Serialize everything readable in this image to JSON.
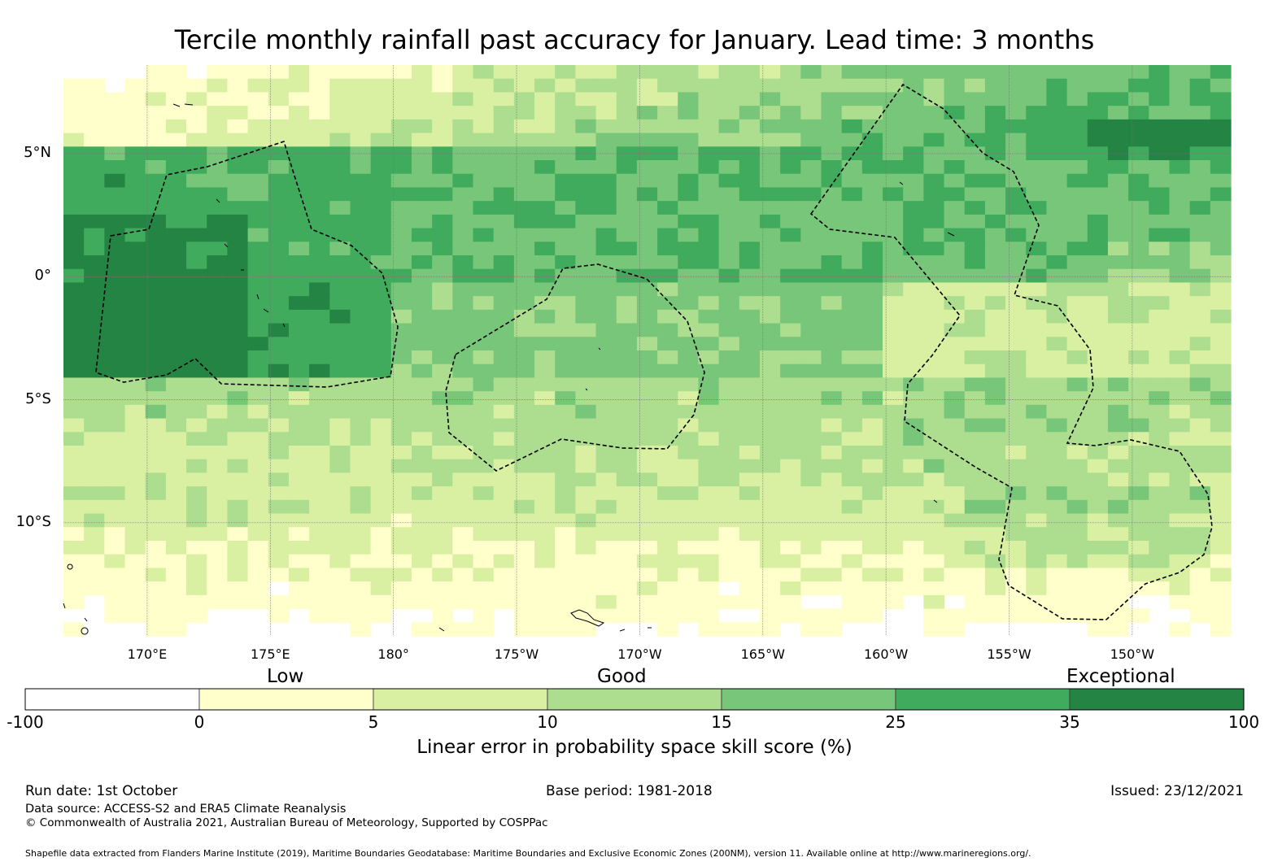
{
  "title": "Tercile monthly rainfall past accuracy for January. Lead time: 3 months",
  "map": {
    "lat_labels": [
      "5°N",
      "0°",
      "5°S",
      "10°S"
    ],
    "lon_labels": [
      "170°E",
      "175°E",
      "180°",
      "175°W",
      "170°W",
      "165°W",
      "160°W",
      "155°W",
      "150°W"
    ],
    "extent": {
      "lon_min": 166.6,
      "lon_max": 214.0,
      "lat_min": -14.6,
      "lat_max": 8.6
    },
    "grid_resolution_deg": 0.83
  },
  "colorbar": {
    "category_labels": [
      "Low",
      "Good",
      "Exceptional"
    ],
    "ticks": [
      "-100",
      "0",
      "5",
      "10",
      "15",
      "25",
      "35",
      "100"
    ],
    "colors": [
      "#ffffff",
      "#ffffcc",
      "#d9f0a3",
      "#addd8e",
      "#78c679",
      "#41ab5d",
      "#238443"
    ],
    "label": "Linear error in probability space skill score (%)"
  },
  "footer": {
    "run_date": "Run date: 1st October",
    "base_period": "Base period: 1981-2018",
    "issued": "Issued: 23/12/2021",
    "data_source": "Data source: ACCESS-S2 and ERA5 Climate Reanalysis",
    "copyright": "© Commonwealth of Australia 2021, Australian Bureau of Meteorology, Supported by COSPPac",
    "shapefile": "Shapefile data extracted from Flanders Marine Institute (2019), Maritime Boundaries Geodatabase: Maritime Boundaries and Exclusive Economic Zones (200NM), version 11. Available online at http://www.marineregions.org/."
  }
}
